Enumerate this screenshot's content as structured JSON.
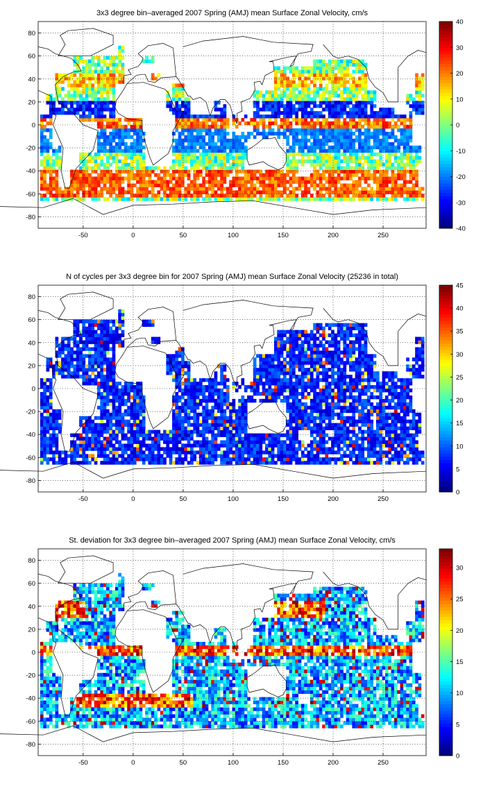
{
  "chart_data": [
    {
      "type": "heatmap",
      "title": "3x3 degree bin–averaged 2007 Spring (AMJ) mean Surface Zonal Velocity, cm/s",
      "xlabel": "",
      "ylabel": "",
      "xlim": [
        -95,
        293
      ],
      "ylim": [
        -90,
        90
      ],
      "x_ticks": [
        "-50",
        "0",
        "50",
        "100",
        "150",
        "200",
        "250"
      ],
      "y_ticks": [
        "80",
        "60",
        "40",
        "20",
        "0",
        "-20",
        "-40",
        "-60",
        "-80"
      ],
      "colorbar": {
        "min": -40,
        "max": 40,
        "ticks": [
          "40",
          "30",
          "20",
          "10",
          "0",
          "-10",
          "-20",
          "-30",
          "-40"
        ],
        "colormap": "jet"
      },
      "bin_size_deg": 3,
      "grid": true,
      "field": "zonal_velocity"
    },
    {
      "type": "heatmap",
      "title": "N of cycles per 3x3 degree bin for 2007 Spring (AMJ) mean Surface Zonal Velocity (25236 in total)",
      "xlabel": "",
      "ylabel": "",
      "xlim": [
        -95,
        293
      ],
      "ylim": [
        -90,
        90
      ],
      "x_ticks": [
        "-50",
        "0",
        "50",
        "100",
        "150",
        "200",
        "250"
      ],
      "y_ticks": [
        "80",
        "60",
        "40",
        "20",
        "0",
        "-20",
        "-40",
        "-60",
        "-80"
      ],
      "colorbar": {
        "min": 0,
        "max": 45,
        "ticks": [
          "45",
          "40",
          "35",
          "30",
          "25",
          "20",
          "15",
          "10",
          "5",
          "0"
        ],
        "colormap": "jet"
      },
      "bin_size_deg": 3,
      "grid": true,
      "field": "cycle_count"
    },
    {
      "type": "heatmap",
      "title": "St. deviation for 3x3 degree bin–averaged 2007 Spring (AMJ) mean Surface Zonal Velocity, cm/s",
      "xlabel": "",
      "ylabel": "",
      "xlim": [
        -95,
        293
      ],
      "ylim": [
        -90,
        90
      ],
      "x_ticks": [
        "-50",
        "0",
        "50",
        "100",
        "150",
        "200",
        "250"
      ],
      "y_ticks": [
        "80",
        "60",
        "40",
        "20",
        "0",
        "-20",
        "-40",
        "-60",
        "-80"
      ],
      "colorbar": {
        "min": 0,
        "max": 33,
        "ticks": [
          "30",
          "25",
          "20",
          "15",
          "10",
          "5",
          "0"
        ],
        "colormap": "jet"
      },
      "bin_size_deg": 3,
      "grid": true,
      "field": "std_deviation"
    }
  ]
}
